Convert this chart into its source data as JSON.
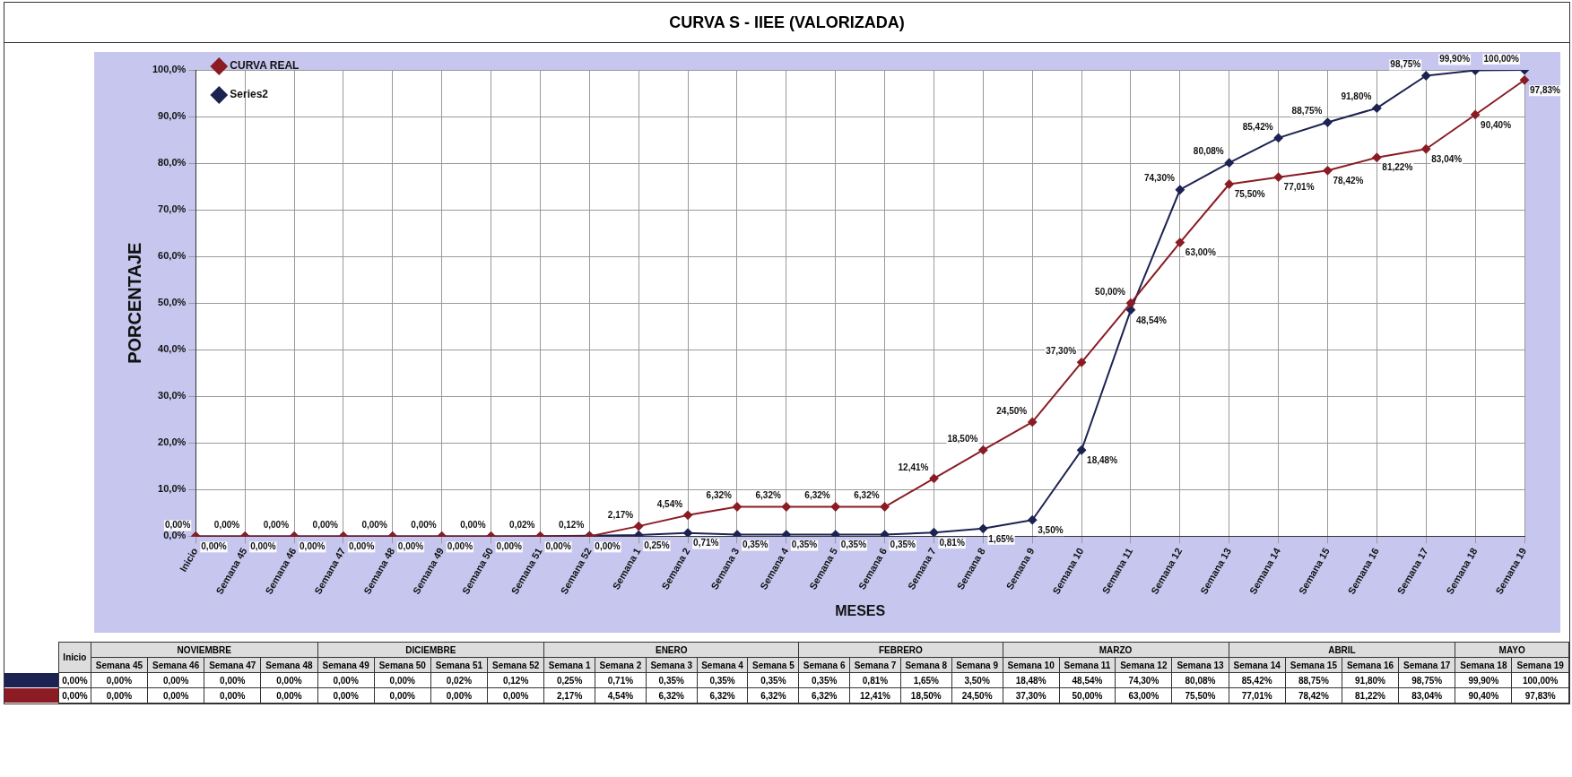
{
  "chart_data": {
    "type": "line",
    "title": "CURVA S - IIEE (VALORIZADA)",
    "xlabel": "MESES",
    "ylabel": "PORCENTAJE",
    "categories": [
      "Inicio",
      "Semana 45",
      "Semana 46",
      "Semana 47",
      "Semana 48",
      "Semana 49",
      "Semana 50",
      "Semana 51",
      "Semana 52",
      "Semana 1",
      "Semana 2",
      "Semana 3",
      "Semana 4",
      "Semana 5",
      "Semana 6",
      "Semana 7",
      "Semana 8",
      "Semana 9",
      "Semana 10",
      "Semana 11",
      "Semana 12",
      "Semana 13",
      "Semana 14",
      "Semana 15",
      "Semana 16",
      "Semana 17",
      "Semana 18",
      "Semana 19"
    ],
    "series": [
      {
        "name": "CURVA REAL",
        "color": "#8b1c24",
        "values": [
          0,
          0,
          0,
          0,
          0,
          0,
          0,
          0,
          0,
          2.17,
          4.54,
          6.32,
          6.32,
          6.32,
          6.32,
          12.41,
          18.5,
          24.5,
          37.3,
          50.0,
          63.0,
          75.5,
          77.01,
          78.42,
          81.22,
          83.04,
          90.4,
          97.83
        ],
        "value_labels": [
          "0,00%",
          "0,00%",
          "0,00%",
          "0,00%",
          "0,00%",
          "0,00%",
          "0,00%",
          "0,00%",
          "0,00%",
          "2,17%",
          "4,54%",
          "6,32%",
          "6,32%",
          "6,32%",
          "6,32%",
          "12,41%",
          "18,50%",
          "24,50%",
          "37,30%",
          "50,00%",
          "63,00%",
          "75,50%",
          "77,01%",
          "78,42%",
          "81,22%",
          "83,04%",
          "90,40%",
          "97,83%"
        ]
      },
      {
        "name": "Series2",
        "color": "#1c2352",
        "values": [
          0,
          0,
          0,
          0,
          0,
          0,
          0,
          0.02,
          0.12,
          0.25,
          0.71,
          0.35,
          0.35,
          0.35,
          0.35,
          0.81,
          1.65,
          3.5,
          18.48,
          48.54,
          74.3,
          80.08,
          85.42,
          88.75,
          91.8,
          98.75,
          99.9,
          100.0
        ],
        "value_labels": [
          "0,00%",
          "0,00%",
          "0,00%",
          "0,00%",
          "0,00%",
          "0,00%",
          "0,00%",
          "0,02%",
          "0,12%",
          "0,25%",
          "0,71%",
          "0,35%",
          "0,35%",
          "0,35%",
          "0,35%",
          "0,81%",
          "1,65%",
          "3,50%",
          "18,48%",
          "48,54%",
          "74,30%",
          "80,08%",
          "85,42%",
          "88,75%",
          "91,80%",
          "98,75%",
          "99,90%",
          "100,00%"
        ]
      }
    ],
    "ylim": [
      0,
      100
    ],
    "yticks": [
      {
        "value": 0,
        "label": "0,0%"
      },
      {
        "value": 10,
        "label": "10,0%"
      },
      {
        "value": 20,
        "label": "20,0%"
      },
      {
        "value": 30,
        "label": "30,0%"
      },
      {
        "value": 40,
        "label": "40,0%"
      },
      {
        "value": 50,
        "label": "50,0%"
      },
      {
        "value": 60,
        "label": "60,0%"
      },
      {
        "value": 70,
        "label": "70,0%"
      },
      {
        "value": 80,
        "label": "80,0%"
      },
      {
        "value": 90,
        "label": "90,0%"
      },
      {
        "value": 100,
        "label": "100,0%"
      }
    ],
    "grid": true,
    "legend": "top left",
    "marker": "diamond",
    "line_style": "solid",
    "annotations": [
      "NOVIEMBRE",
      "DICIEMBRE",
      "ENERO",
      "FEBRERO",
      "MARZO",
      "ABRIL",
      "MAYO"
    ]
  }
}
